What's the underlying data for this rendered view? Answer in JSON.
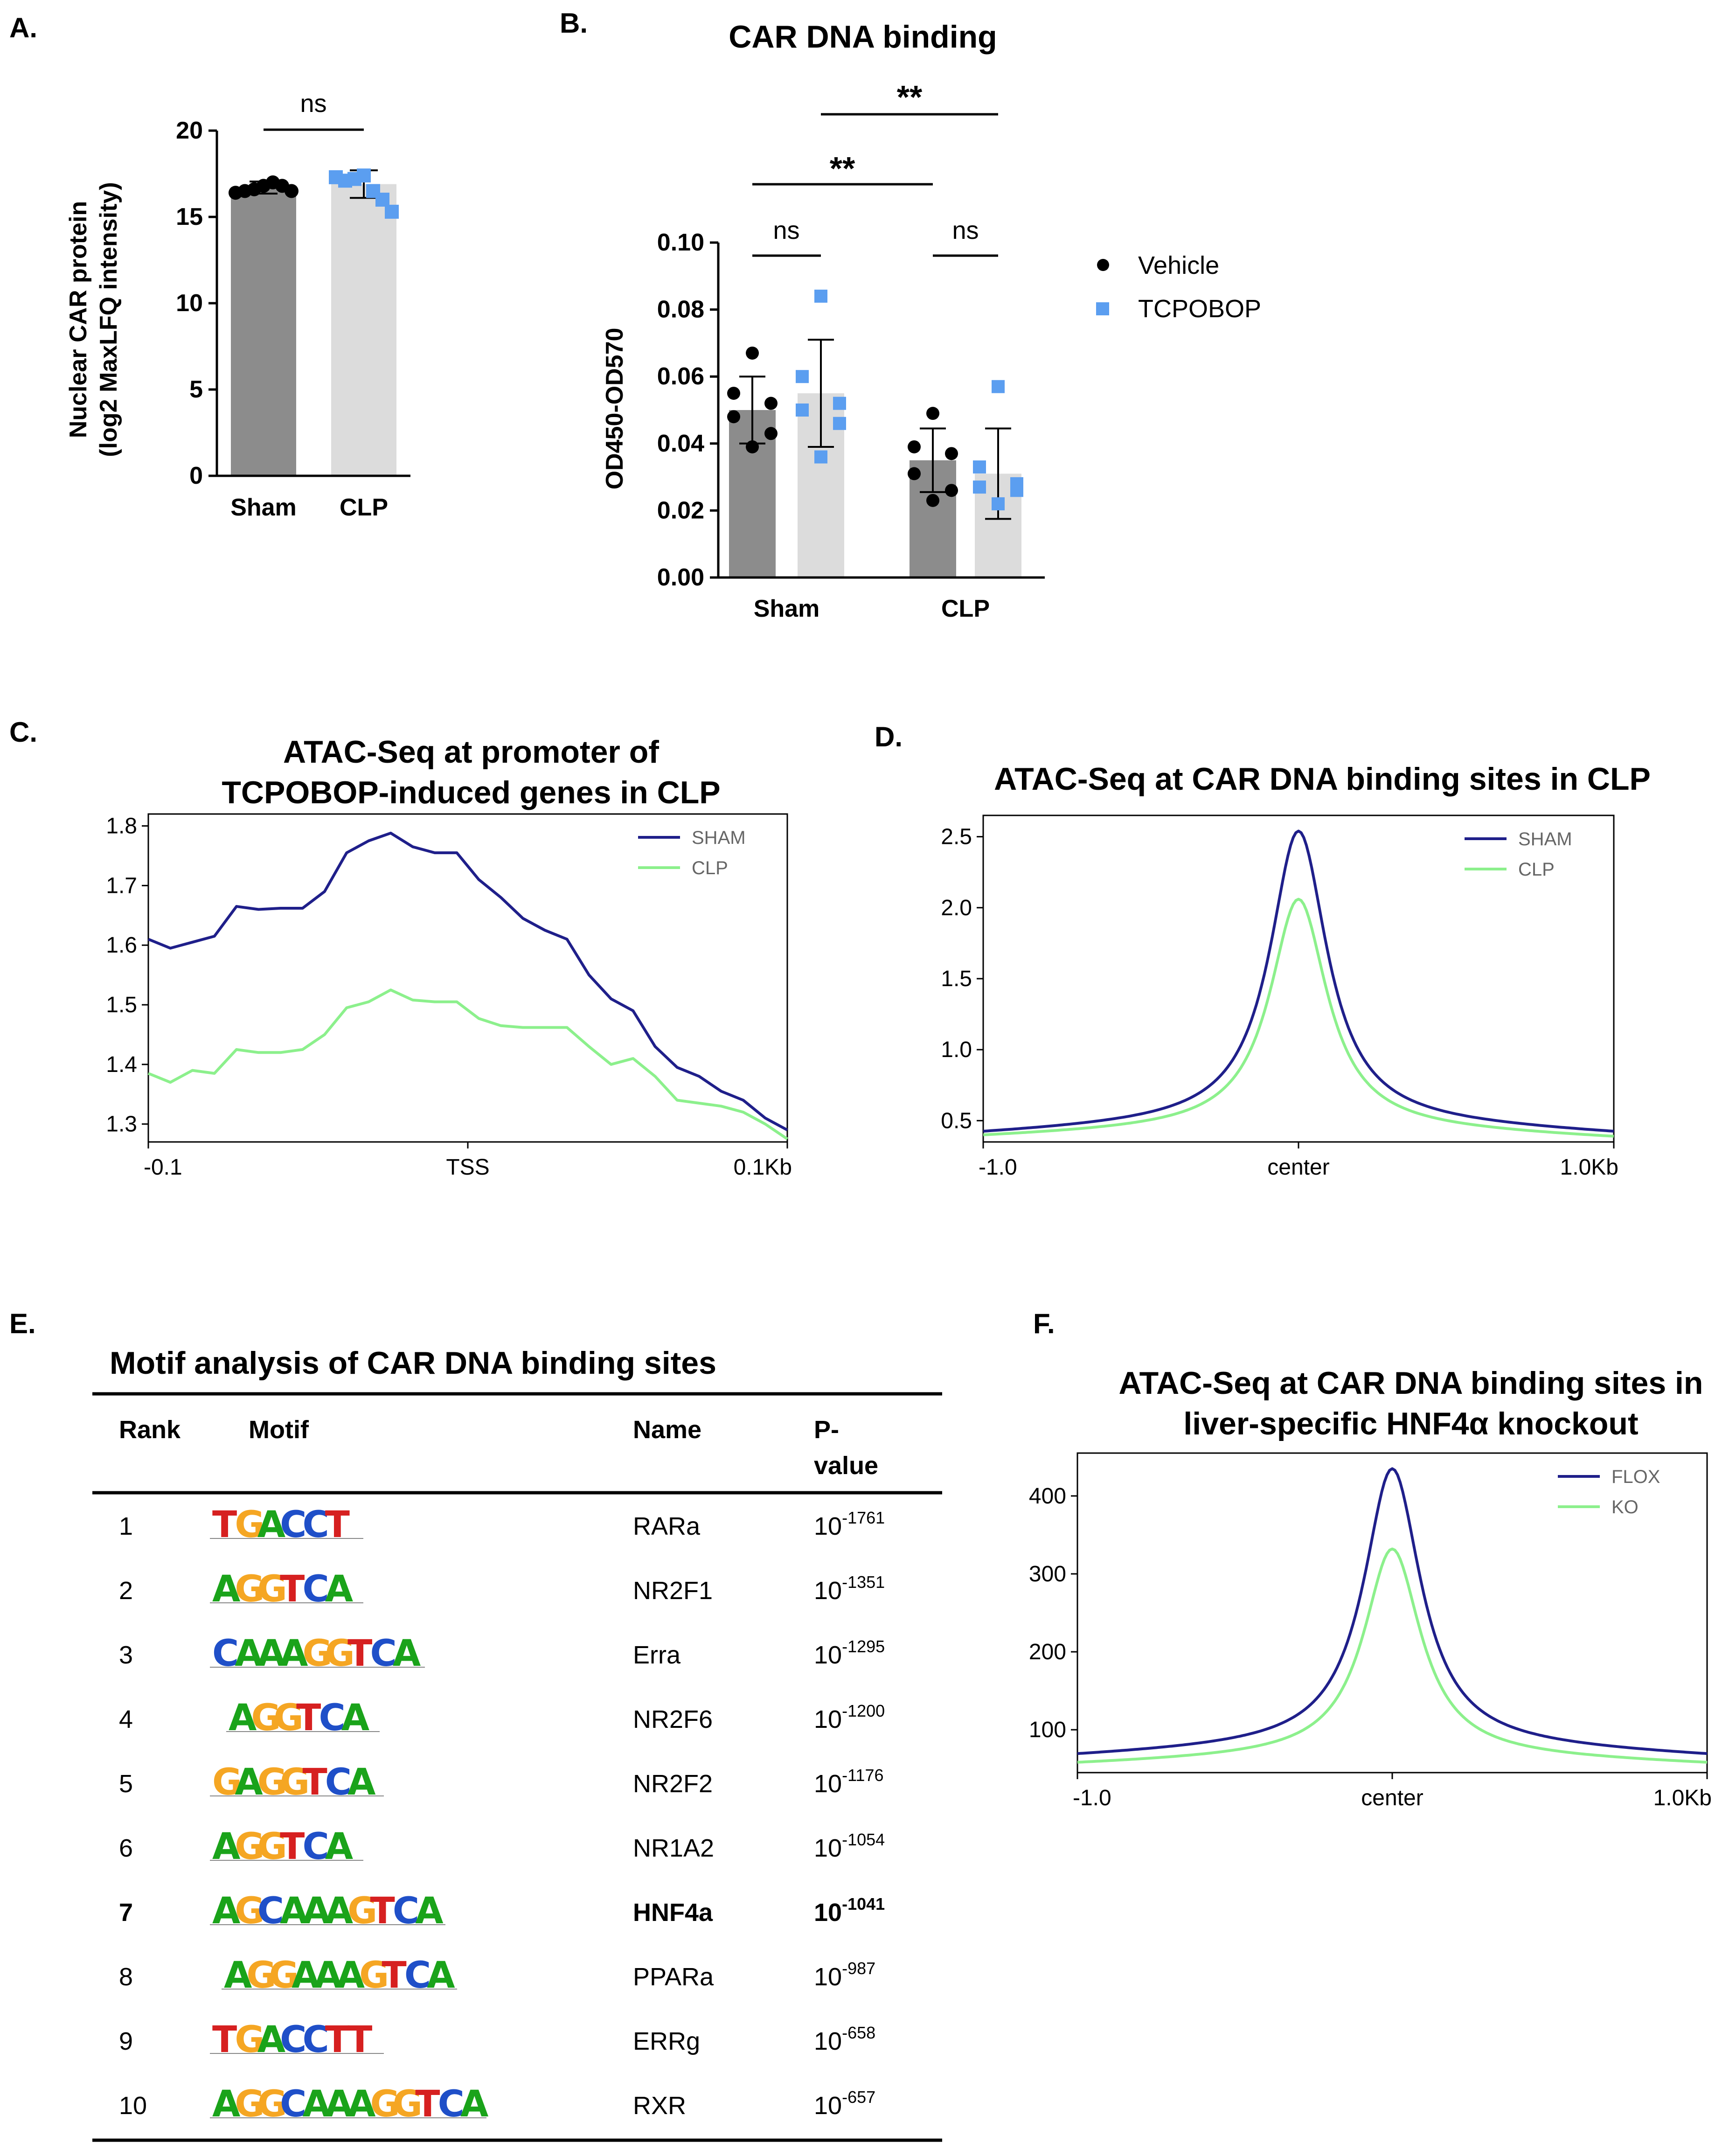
{
  "colors": {
    "dark_bar": "#8c8c8c",
    "light_bar": "#dcdcdc",
    "dot_black": "#000000",
    "dot_blue": "#5b9ef0",
    "sham_line": "#1f1f8a",
    "clp_line": "#8cf08c",
    "motif_A": "#1aa31a",
    "motif_C": "#1f4fc8",
    "motif_G": "#f5a623",
    "motif_T": "#d62020"
  },
  "chart_data": [
    {
      "panel": "A.",
      "type": "bar",
      "title": "",
      "ylabel": [
        "Nuclear CAR protein",
        "(log2 MaxLFQ intensity)"
      ],
      "categories": [
        "Sham",
        "CLP"
      ],
      "values": [
        16.7,
        16.9
      ],
      "error": [
        0.35,
        0.8
      ],
      "points": [
        [
          16.4,
          16.5,
          16.6,
          16.8,
          17.0,
          16.8,
          16.5
        ],
        [
          17.3,
          17.1,
          17.2,
          17.4,
          16.5,
          16.0,
          15.3
        ]
      ],
      "ylim": [
        0,
        20
      ],
      "yticks": [
        "0",
        "5",
        "10",
        "15",
        "20"
      ],
      "significance": [
        {
          "label": "ns",
          "from": 0,
          "to": 1
        }
      ]
    },
    {
      "panel": "B.",
      "type": "bar",
      "title": "CAR DNA binding",
      "ylabel": "OD450-OD570",
      "categories": [
        "Sham",
        "CLP"
      ],
      "legend": [
        "Vehicle",
        "TCPOBOP"
      ],
      "legend_position": "top-right",
      "series": [
        {
          "name": "Vehicle",
          "values": [
            0.05,
            0.035
          ],
          "error": [
            0.01,
            0.0095
          ],
          "points": [
            [
              0.067,
              0.055,
              0.052,
              0.048,
              0.043,
              0.039
            ],
            [
              0.049,
              0.039,
              0.037,
              0.031,
              0.026,
              0.023
            ]
          ]
        },
        {
          "name": "TCPOBOP",
          "values": [
            0.055,
            0.031
          ],
          "error": [
            0.016,
            0.0135
          ],
          "points": [
            [
              0.084,
              0.06,
              0.052,
              0.05,
              0.046,
              0.036
            ],
            [
              0.057,
              0.033,
              0.028,
              0.027,
              0.026,
              0.022
            ]
          ]
        }
      ],
      "ylim": [
        0,
        0.1
      ],
      "yticks": [
        "0.00",
        "0.02",
        "0.04",
        "0.06",
        "0.08",
        "0.10"
      ],
      "significance": [
        {
          "label": "ns",
          "group": "Sham"
        },
        {
          "label": "ns",
          "group": "CLP"
        },
        {
          "label": "**",
          "between": "Sham Vehicle vs CLP Vehicle"
        },
        {
          "label": "**",
          "between": "Sham TCPOBOP vs CLP TCPOBOP"
        }
      ]
    },
    {
      "panel": "C.",
      "type": "line",
      "title": [
        "ATAC-Seq at promoter of",
        "TCPOBOP-induced genes in CLP"
      ],
      "xticks": [
        "-0.1",
        "TSS",
        "0.1Kb"
      ],
      "ylim": [
        1.27,
        1.82
      ],
      "yticks": [
        1.3,
        1.4,
        1.5,
        1.6,
        1.7,
        1.8
      ],
      "ytick_labels": [
        "1.3",
        "1.4",
        "1.5",
        "1.6",
        "1.7",
        "1.8"
      ],
      "series": [
        {
          "name": "SHAM",
          "values": [
            1.61,
            1.595,
            1.605,
            1.615,
            1.665,
            1.66,
            1.662,
            1.662,
            1.69,
            1.755,
            1.775,
            1.788,
            1.765,
            1.755,
            1.755,
            1.71,
            1.68,
            1.645,
            1.625,
            1.61,
            1.55,
            1.51,
            1.49,
            1.43,
            1.395,
            1.38,
            1.355,
            1.34,
            1.31,
            1.29
          ]
        },
        {
          "name": "CLP",
          "values": [
            1.385,
            1.37,
            1.39,
            1.385,
            1.425,
            1.42,
            1.42,
            1.425,
            1.45,
            1.495,
            1.505,
            1.525,
            1.508,
            1.505,
            1.505,
            1.477,
            1.465,
            1.462,
            1.462,
            1.462,
            1.43,
            1.4,
            1.41,
            1.38,
            1.34,
            1.335,
            1.33,
            1.32,
            1.3,
            1.275
          ]
        }
      ],
      "legend_position": "top-right"
    },
    {
      "panel": "D.",
      "type": "line",
      "title": "ATAC-Seq at CAR DNA binding sites in CLP",
      "xticks": [
        "-1.0",
        "center",
        "1.0Kb"
      ],
      "ylim": [
        0.35,
        2.65
      ],
      "yticks": [
        0.5,
        1.0,
        1.5,
        2.0,
        2.5
      ],
      "ytick_labels": [
        "0.5",
        "1.0",
        "1.5",
        "2.0",
        "2.5"
      ],
      "series": [
        {
          "name": "SHAM",
          "peak": 2.54,
          "base_left": 0.4,
          "base_right": 0.4
        },
        {
          "name": "CLP",
          "peak": 2.06,
          "base_left": 0.38,
          "base_right": 0.37
        }
      ],
      "legend_position": "top-right"
    },
    {
      "panel": "F.",
      "type": "line",
      "title": [
        "ATAC-Seq at CAR DNA binding sites in",
        "liver-specific HNF4α knockout"
      ],
      "xticks": [
        "-1.0",
        "center",
        "1.0Kb"
      ],
      "ylim": [
        45,
        455
      ],
      "yticks": [
        100,
        200,
        300,
        400
      ],
      "ytick_labels": [
        "100",
        "200",
        "300",
        "400"
      ],
      "series": [
        {
          "name": "FLOX",
          "peak": 435,
          "base_left": 65,
          "base_right": 65
        },
        {
          "name": "KO",
          "peak": 332,
          "base_left": 55,
          "base_right": 55
        }
      ],
      "legend_position": "top-right"
    }
  ],
  "panel_e": {
    "label": "E.",
    "title": "Motif analysis of CAR DNA binding sites",
    "headers": {
      "rank": "Rank",
      "motif": "Motif",
      "name": "Name",
      "p1": "P-",
      "p2": "value"
    },
    "rows": [
      {
        "rank": "1",
        "motif": "TGACCT",
        "name": "RARa",
        "p_base": "10",
        "p_exp": "-1761",
        "bold": false
      },
      {
        "rank": "2",
        "motif": "AGGTCA",
        "name": "NR2F1",
        "p_base": "10",
        "p_exp": "-1351",
        "bold": false
      },
      {
        "rank": "3",
        "motif": "CAAAGGTCA",
        "name": "Erra",
        "p_base": "10",
        "p_exp": "-1295",
        "bold": false
      },
      {
        "rank": "4",
        "motif": "AGGTCA",
        "name": "NR2F6",
        "p_base": "10",
        "p_exp": "-1200",
        "bold": false
      },
      {
        "rank": "5",
        "motif": "GAGGTCA",
        "name": "NR2F2",
        "p_base": "10",
        "p_exp": "-1176",
        "bold": false
      },
      {
        "rank": "6",
        "motif": "AGGTCA",
        "name": "NR1A2",
        "p_base": "10",
        "p_exp": "-1054",
        "bold": false
      },
      {
        "rank": "7",
        "motif": "AGCAAAGTCA",
        "name": "HNF4a",
        "p_base": "10",
        "p_exp": "-1041",
        "bold": true
      },
      {
        "rank": "8",
        "motif": "AGGAAAGTCA",
        "name": "PPARa",
        "p_base": "10",
        "p_exp": "-987",
        "bold": false
      },
      {
        "rank": "9",
        "motif": "TGACCTT",
        "name": "ERRg",
        "p_base": "10",
        "p_exp": "-658",
        "bold": false
      },
      {
        "rank": "10",
        "motif": "AGGCAAAGGTCA",
        "name": "RXR",
        "p_base": "10",
        "p_exp": "-657",
        "bold": false
      }
    ]
  }
}
